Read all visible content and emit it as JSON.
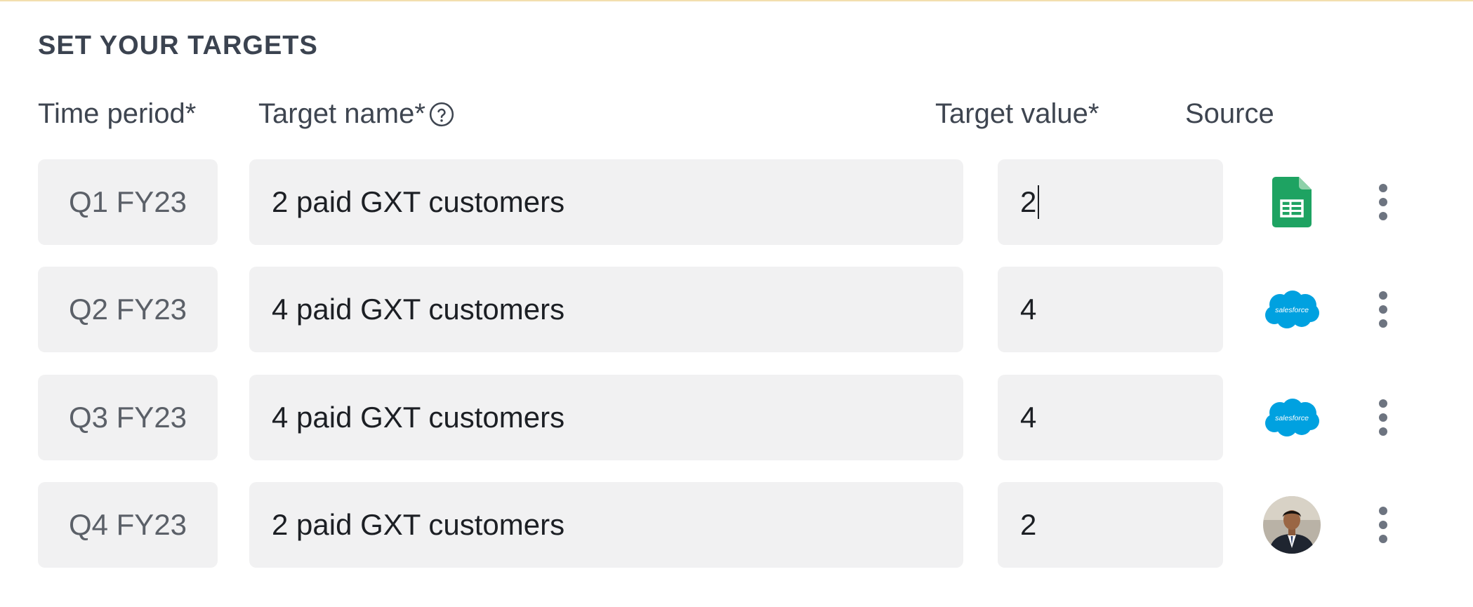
{
  "section": {
    "title": "SET YOUR TARGETS"
  },
  "columns": {
    "time_period": "Time period*",
    "target_name": "Target name*",
    "target_value": "Target value*",
    "source": "Source"
  },
  "rows": [
    {
      "period": "Q1 FY23",
      "name": "2 paid GXT customers",
      "value": "2",
      "source_icon": "google-sheets-icon"
    },
    {
      "period": "Q2 FY23",
      "name": "4 paid GXT customers",
      "value": "4",
      "source_icon": "salesforce-icon",
      "source_label": "salesforce"
    },
    {
      "period": "Q3 FY23",
      "name": "4 paid GXT customers",
      "value": "4",
      "source_icon": "salesforce-icon",
      "source_label": "salesforce"
    },
    {
      "period": "Q4 FY23",
      "name": "2 paid GXT customers",
      "value": "2",
      "source_icon": "user-avatar"
    }
  ],
  "colors": {
    "field_bg": "#f1f1f2",
    "sheets_green": "#1ea362",
    "salesforce_blue": "#00a1e0",
    "text": "#1c1f24",
    "muted_text": "#5b6068"
  }
}
